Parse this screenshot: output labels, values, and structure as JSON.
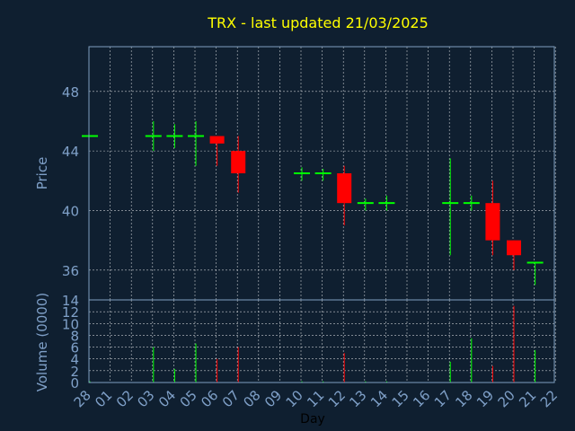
{
  "chart_data": {
    "type": "candlestick",
    "title": "TRX - last updated 21/03/2025",
    "xlabel": "Day",
    "ylabel_price": "Price",
    "ylabel_volume": "Volume (0000)",
    "x_ticks": [
      "28",
      "01",
      "02",
      "03",
      "04",
      "05",
      "06",
      "07",
      "08",
      "09",
      "10",
      "11",
      "12",
      "13",
      "14",
      "15",
      "16",
      "17",
      "18",
      "19",
      "20",
      "21",
      "22"
    ],
    "price_ticks": [
      36,
      40,
      44,
      48
    ],
    "price_ylim": [
      34.0,
      51.0
    ],
    "volume_ticks": [
      0,
      2,
      4,
      6,
      8,
      10,
      12,
      14
    ],
    "volume_ylim": [
      0,
      14
    ],
    "grid": true,
    "colors": {
      "background": "#0f1f30",
      "up": "#00ff00",
      "down": "#ff0000",
      "title": "#ffff00",
      "axis_text": "#7fa0c8",
      "xlabel": "#000000",
      "grid": "#ffffff",
      "frame": "#7f9fbf"
    },
    "candles": [
      {
        "day": "28",
        "open": 45.0,
        "high": 45.0,
        "low": 45.0,
        "close": 45.0,
        "volume": 0.2
      },
      {
        "day": "03",
        "open": 45.0,
        "high": 46.0,
        "low": 44.0,
        "close": 45.0,
        "volume": 6.0
      },
      {
        "day": "04",
        "open": 45.0,
        "high": 45.8,
        "low": 44.2,
        "close": 45.0,
        "volume": 2.3
      },
      {
        "day": "05",
        "open": 45.0,
        "high": 46.0,
        "low": 43.0,
        "close": 45.0,
        "volume": 6.6
      },
      {
        "day": "06",
        "open": 45.0,
        "high": 45.0,
        "low": 43.0,
        "close": 44.5,
        "volume": 4.0
      },
      {
        "day": "07",
        "open": 44.0,
        "high": 45.0,
        "low": 41.2,
        "close": 42.5,
        "volume": 6.0
      },
      {
        "day": "10",
        "open": 42.5,
        "high": 42.9,
        "low": 42.0,
        "close": 42.5,
        "volume": 0.2
      },
      {
        "day": "11",
        "open": 42.5,
        "high": 42.8,
        "low": 42.0,
        "close": 42.5,
        "volume": 0.2
      },
      {
        "day": "12",
        "open": 42.5,
        "high": 43.0,
        "low": 39.0,
        "close": 40.5,
        "volume": 5.0
      },
      {
        "day": "13",
        "open": 40.5,
        "high": 40.8,
        "low": 40.0,
        "close": 40.5,
        "volume": 0.2
      },
      {
        "day": "14",
        "open": 40.5,
        "high": 41.0,
        "low": 40.0,
        "close": 40.5,
        "volume": 0.2
      },
      {
        "day": "17",
        "open": 40.5,
        "high": 43.5,
        "low": 37.0,
        "close": 40.5,
        "volume": 3.5
      },
      {
        "day": "18",
        "open": 40.5,
        "high": 41.0,
        "low": 40.0,
        "close": 40.5,
        "volume": 7.5
      },
      {
        "day": "19",
        "open": 40.5,
        "high": 42.0,
        "low": 37.0,
        "close": 38.0,
        "volume": 2.8
      },
      {
        "day": "20",
        "open": 38.0,
        "high": 38.0,
        "low": 36.0,
        "close": 37.0,
        "volume": 13.0
      },
      {
        "day": "21",
        "open": 36.5,
        "high": 36.5,
        "low": 35.0,
        "close": 36.5,
        "volume": 5.5
      }
    ]
  }
}
